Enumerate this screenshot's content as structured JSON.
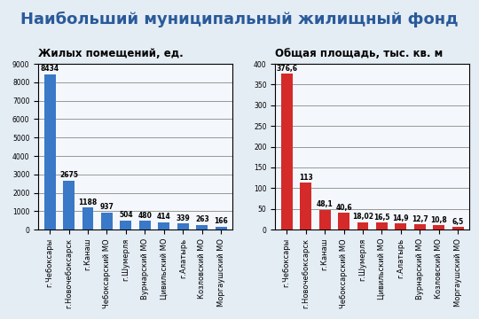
{
  "title": "Наибольший муниципальный жилищный фонд",
  "chart_data": [
    {
      "type": "bar",
      "title": "Жилых помещений, ед.",
      "categories": [
        "г.Чебоксары",
        "г.Новочебоксарск",
        "г.Канаш",
        "Чебоксарский МО",
        "г.Шумерля",
        "Вурнарский МО",
        "Цивильский МО",
        "г.Алатырь",
        "Козловский МО",
        "Моргаушский МО"
      ],
      "values": [
        8434,
        2675,
        1188,
        937,
        504,
        480,
        414,
        339,
        263,
        166
      ],
      "color": "#3a78c8",
      "ylim": [
        0,
        9000
      ],
      "yticks": [
        0,
        1000,
        2000,
        3000,
        4000,
        5000,
        6000,
        7000,
        8000,
        9000
      ],
      "grid": true,
      "data_labels": true
    },
    {
      "type": "bar",
      "title": "Общая площадь, тыс. кв. м",
      "categories": [
        "г.Чебоксары",
        "г.Новочебоксарск",
        "г.Канаш",
        "Чебоксарский МО",
        "г.Шумерля",
        "Цивильский МО",
        "г.Алатырь",
        "Вурнарский МО",
        "Козловский МО",
        "Моргаушский МО"
      ],
      "values": [
        376.6,
        113,
        48.1,
        40.6,
        18.02,
        16.5,
        14.9,
        12.7,
        10.8,
        6.5
      ],
      "value_labels": [
        "376,6",
        "113",
        "48,1",
        "40,6",
        "18,02",
        "16,5",
        "14,9",
        "12,7",
        "10,8",
        "6,5"
      ],
      "color": "#d42a2a",
      "ylim": [
        0,
        400
      ],
      "yticks": [
        0,
        50,
        100,
        150,
        200,
        250,
        300,
        350,
        400
      ],
      "grid": true,
      "data_labels": true
    }
  ]
}
